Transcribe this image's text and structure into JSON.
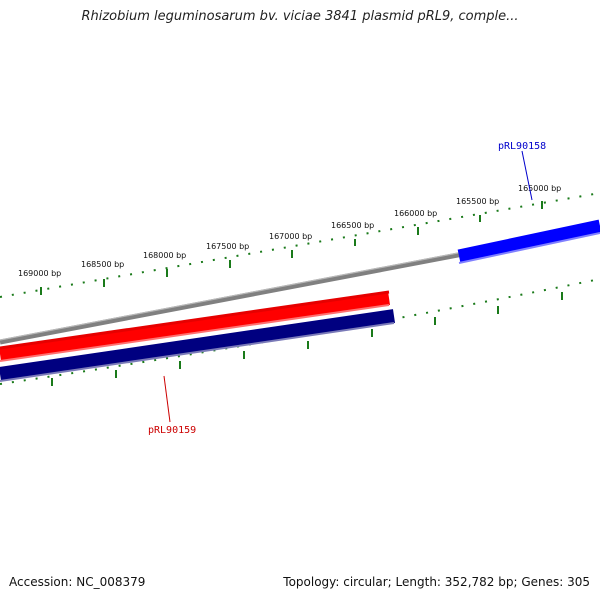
{
  "title": "Rhizobium leguminosarum bv. viciae 3841 plasmid pRL9, comple...",
  "footer": {
    "accession": "Accession: NC_008379",
    "summary": "Topology: circular; Length: 352,782 bp; Genes: 305"
  },
  "colors": {
    "backbone": "#808080",
    "ticks": "#1a7a1a",
    "forward_gene": "#ff0000",
    "reverse_gene": "#000080",
    "highlight_gene": "#0000ff",
    "label_red": "#cc0000",
    "label_blue": "#0000cc"
  },
  "scale_labels": [
    "165000 bp",
    "165500 bp",
    "166000 bp",
    "166500 bp",
    "167000 bp",
    "167500 bp",
    "168000 bp",
    "168500 bp",
    "169000 bp"
  ],
  "genes": [
    {
      "id": "pRL90158",
      "strand": "forward",
      "color_key": "highlight_gene",
      "label_color_key": "label_blue"
    },
    {
      "id": "pRL90159",
      "strand": "forward",
      "color_key": "forward_gene",
      "label_color_key": "label_red"
    },
    {
      "id": "",
      "strand": "reverse",
      "color_key": "reverse_gene",
      "label_color_key": ""
    }
  ]
}
